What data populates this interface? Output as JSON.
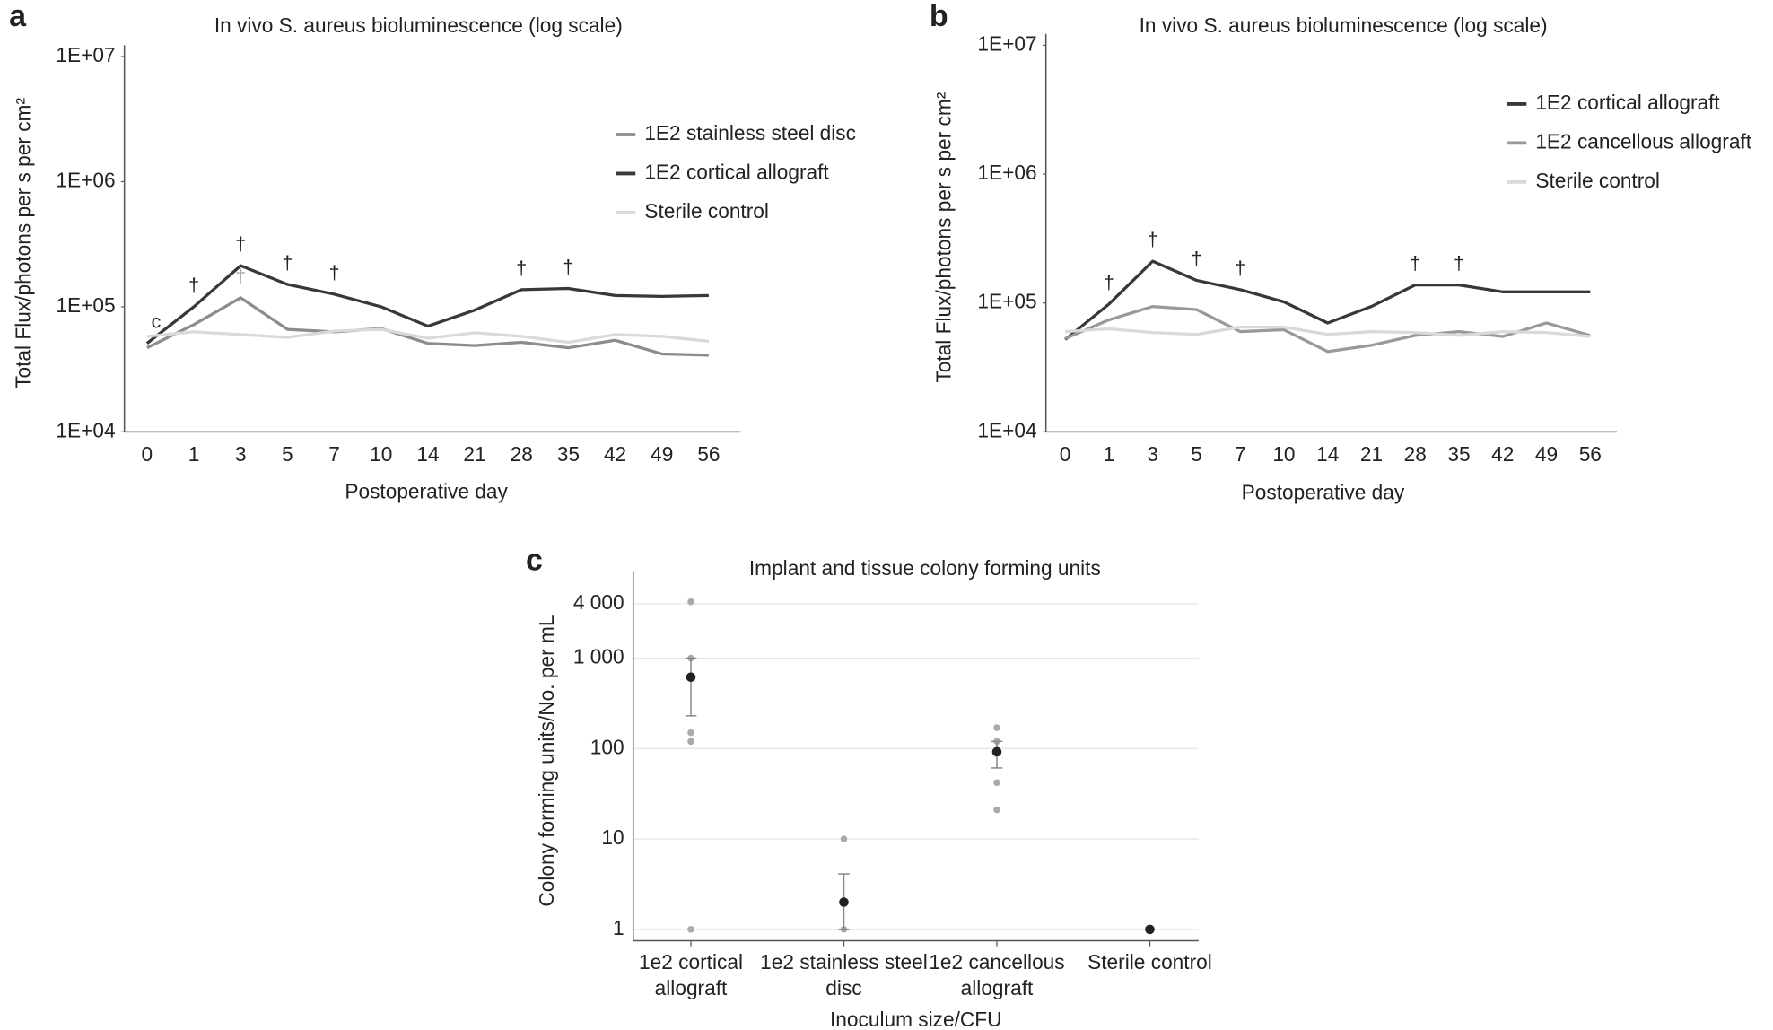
{
  "chart_data": [
    {
      "type": "line",
      "panel": "a",
      "title": "In vivo S. aureus bioluminescence (log scale)",
      "x_label": "Postoperative day",
      "y_label": "Total Flux/photons per s per cm²",
      "categories": [
        "0",
        "1",
        "3",
        "5",
        "7",
        "10",
        "14",
        "21",
        "28",
        "35",
        "42",
        "49",
        "56"
      ],
      "log_y": true,
      "grid": false,
      "legend": "upper right",
      "ylim": [
        10000,
        10000000
      ],
      "yticks": [
        {
          "value": 10000,
          "label": "1E+04"
        },
        {
          "value": 100000,
          "label": "1E+05"
        },
        {
          "value": 1000000,
          "label": "1E+06"
        },
        {
          "value": 10000000,
          "label": "1E+07"
        }
      ],
      "series": [
        {
          "name": "1E2 stainless steel disc",
          "color": "#8c8c8c",
          "values": [
            47000,
            72000,
            118000,
            66000,
            63000,
            67000,
            51000,
            49000,
            52000,
            47000,
            54000,
            42000,
            41000
          ],
          "annotations": [
            null,
            null,
            "†",
            null,
            null,
            null,
            null,
            null,
            null,
            null,
            null,
            null,
            null
          ]
        },
        {
          "name": "1E2 cortical allograft",
          "color": "#383838",
          "values": [
            51000,
            100000,
            213000,
            151000,
            126000,
            100000,
            70000,
            94000,
            137000,
            140000,
            123000,
            121000,
            123000
          ],
          "annotations": [
            "c",
            "†",
            "†",
            "†",
            "†",
            null,
            null,
            null,
            "†",
            "†",
            null,
            null,
            null
          ]
        },
        {
          "name": "Sterile control",
          "color": "#d9d9d9",
          "values": [
            58000,
            63000,
            60000,
            57000,
            64000,
            66000,
            56000,
            62000,
            58000,
            52000,
            60000,
            58000,
            53000
          ]
        }
      ]
    },
    {
      "type": "line",
      "panel": "b",
      "title": "In vivo S. aureus bioluminescence (log scale)",
      "x_label": "Postoperative day",
      "y_label": "Total Flux/photons per s per cm²",
      "categories": [
        "0",
        "1",
        "3",
        "5",
        "7",
        "10",
        "14",
        "21",
        "28",
        "35",
        "42",
        "49",
        "56"
      ],
      "log_y": true,
      "grid": false,
      "legend": "upper right",
      "ylim": [
        10000,
        10000000
      ],
      "yticks": [
        {
          "value": 10000,
          "label": "1E+04"
        },
        {
          "value": 100000,
          "label": "1E+05"
        },
        {
          "value": 1000000,
          "label": "1E+06"
        },
        {
          "value": 10000000,
          "label": "1E+07"
        }
      ],
      "series": [
        {
          "name": "1E2 cortical allograft",
          "color": "#383838",
          "values": [
            52000,
            98000,
            211000,
            150000,
            127000,
            102000,
            70000,
            94000,
            138000,
            138000,
            122000,
            122000,
            122000
          ],
          "annotations": [
            null,
            "†",
            "†",
            "†",
            "†",
            null,
            null,
            null,
            "†",
            "†",
            null,
            null,
            null
          ]
        },
        {
          "name": "1E2 cancellous allograft",
          "color": "#999999",
          "values": [
            53000,
            74000,
            94000,
            89000,
            60000,
            62000,
            42000,
            47000,
            56000,
            60000,
            55000,
            70000,
            56000
          ]
        },
        {
          "name": "Sterile control",
          "color": "#d9d9d9",
          "values": [
            60000,
            63000,
            59000,
            57000,
            65000,
            65000,
            57000,
            60000,
            59000,
            56000,
            60000,
            59000,
            55000
          ]
        }
      ]
    },
    {
      "type": "scatter",
      "panel": "c",
      "title": "Implant and tissue colony forming units",
      "x_label": "Inoculum size/CFU",
      "y_label": "Colony forming units/No. per mL",
      "categories": [
        "1e2 cortical allograft",
        "1e2 stainless steel disc",
        "1e2 cancellous allograft",
        "Sterile control"
      ],
      "log_y": true,
      "grid": true,
      "ylim": [
        0.75,
        6900
      ],
      "yticks": [
        1,
        10,
        100,
        {
          "value": 1000,
          "label": "1 000"
        },
        {
          "value": 4000,
          "label": "4 000"
        }
      ],
      "point_color": "#aaaaaa",
      "mean_color": "#222222",
      "points": [
        [
          4200,
          1000,
          150,
          120,
          1
        ],
        [
          10,
          1
        ],
        [
          170,
          120,
          42,
          21
        ],
        [
          1
        ]
      ],
      "means": [
        615,
        2,
        92,
        1
      ],
      "lower": [
        230,
        1,
        61,
        null
      ],
      "upper": [
        1000,
        4.1,
        120,
        null
      ]
    }
  ]
}
